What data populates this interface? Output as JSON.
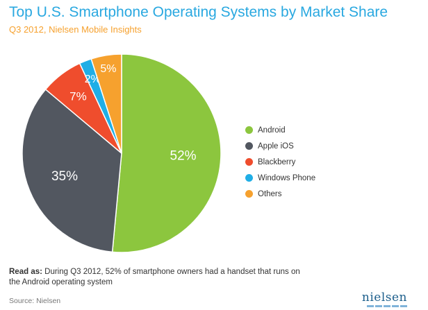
{
  "chart_data": {
    "type": "pie",
    "title": "Top U.S. Smartphone Operating Systems by Market Share",
    "subtitle": "Q3 2012, Nielsen Mobile Insights",
    "slices": [
      {
        "label": "Android",
        "value": 52,
        "display": "52%",
        "color": "#8cc63e"
      },
      {
        "label": "Apple iOS",
        "value": 35,
        "display": "35%",
        "color": "#525760"
      },
      {
        "label": "Blackberry",
        "value": 7,
        "display": "7%",
        "color": "#ef4d2d"
      },
      {
        "label": "Windows Phone",
        "value": 2,
        "display": "2%",
        "color": "#20aee6"
      },
      {
        "label": "Others",
        "value": 5,
        "display": "5%",
        "color": "#f6a12e"
      }
    ],
    "legend_position": "right"
  },
  "note": {
    "label": "Read as:",
    "text": "During Q3 2012, 52% of smartphone owners had a handset that runs on the Android operating system"
  },
  "source": "Source: Nielsen",
  "brand": "nielsen"
}
